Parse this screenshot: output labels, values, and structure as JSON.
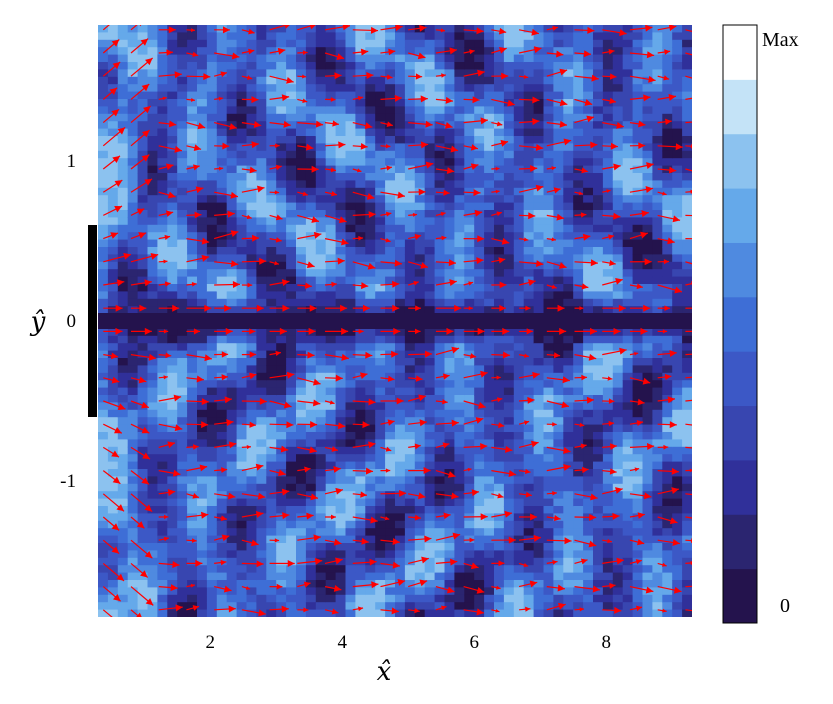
{
  "chart_data": {
    "type": "heatmap",
    "overlay": "vector-field",
    "title": "",
    "xlabel": "x̂",
    "ylabel": "ŷ",
    "xlim": [
      0.3,
      9.3
    ],
    "ylim": [
      -1.85,
      1.85
    ],
    "x_ticks": [
      2,
      4,
      6,
      8
    ],
    "x_tick_labels": [
      "2",
      "4",
      "6",
      "8"
    ],
    "y_ticks": [
      1,
      0,
      -1
    ],
    "y_tick_labels": [
      "1",
      "0",
      "-1"
    ],
    "colorbar": {
      "levels": 10,
      "max_label": "Max",
      "min_label": "0",
      "colors": [
        "#24134d",
        "#2b2570",
        "#30309a",
        "#3846b0",
        "#3c58c6",
        "#3e6ed6",
        "#4f8ae0",
        "#65a9ea",
        "#8cc2ef",
        "#c4e3f7",
        "#ffffff"
      ]
    },
    "wall": {
      "x": 0.3,
      "y_range": [
        -0.6,
        0.6
      ],
      "color": "#000000"
    },
    "arrow_color": "#ff0000",
    "grid": false,
    "legend": "none"
  }
}
